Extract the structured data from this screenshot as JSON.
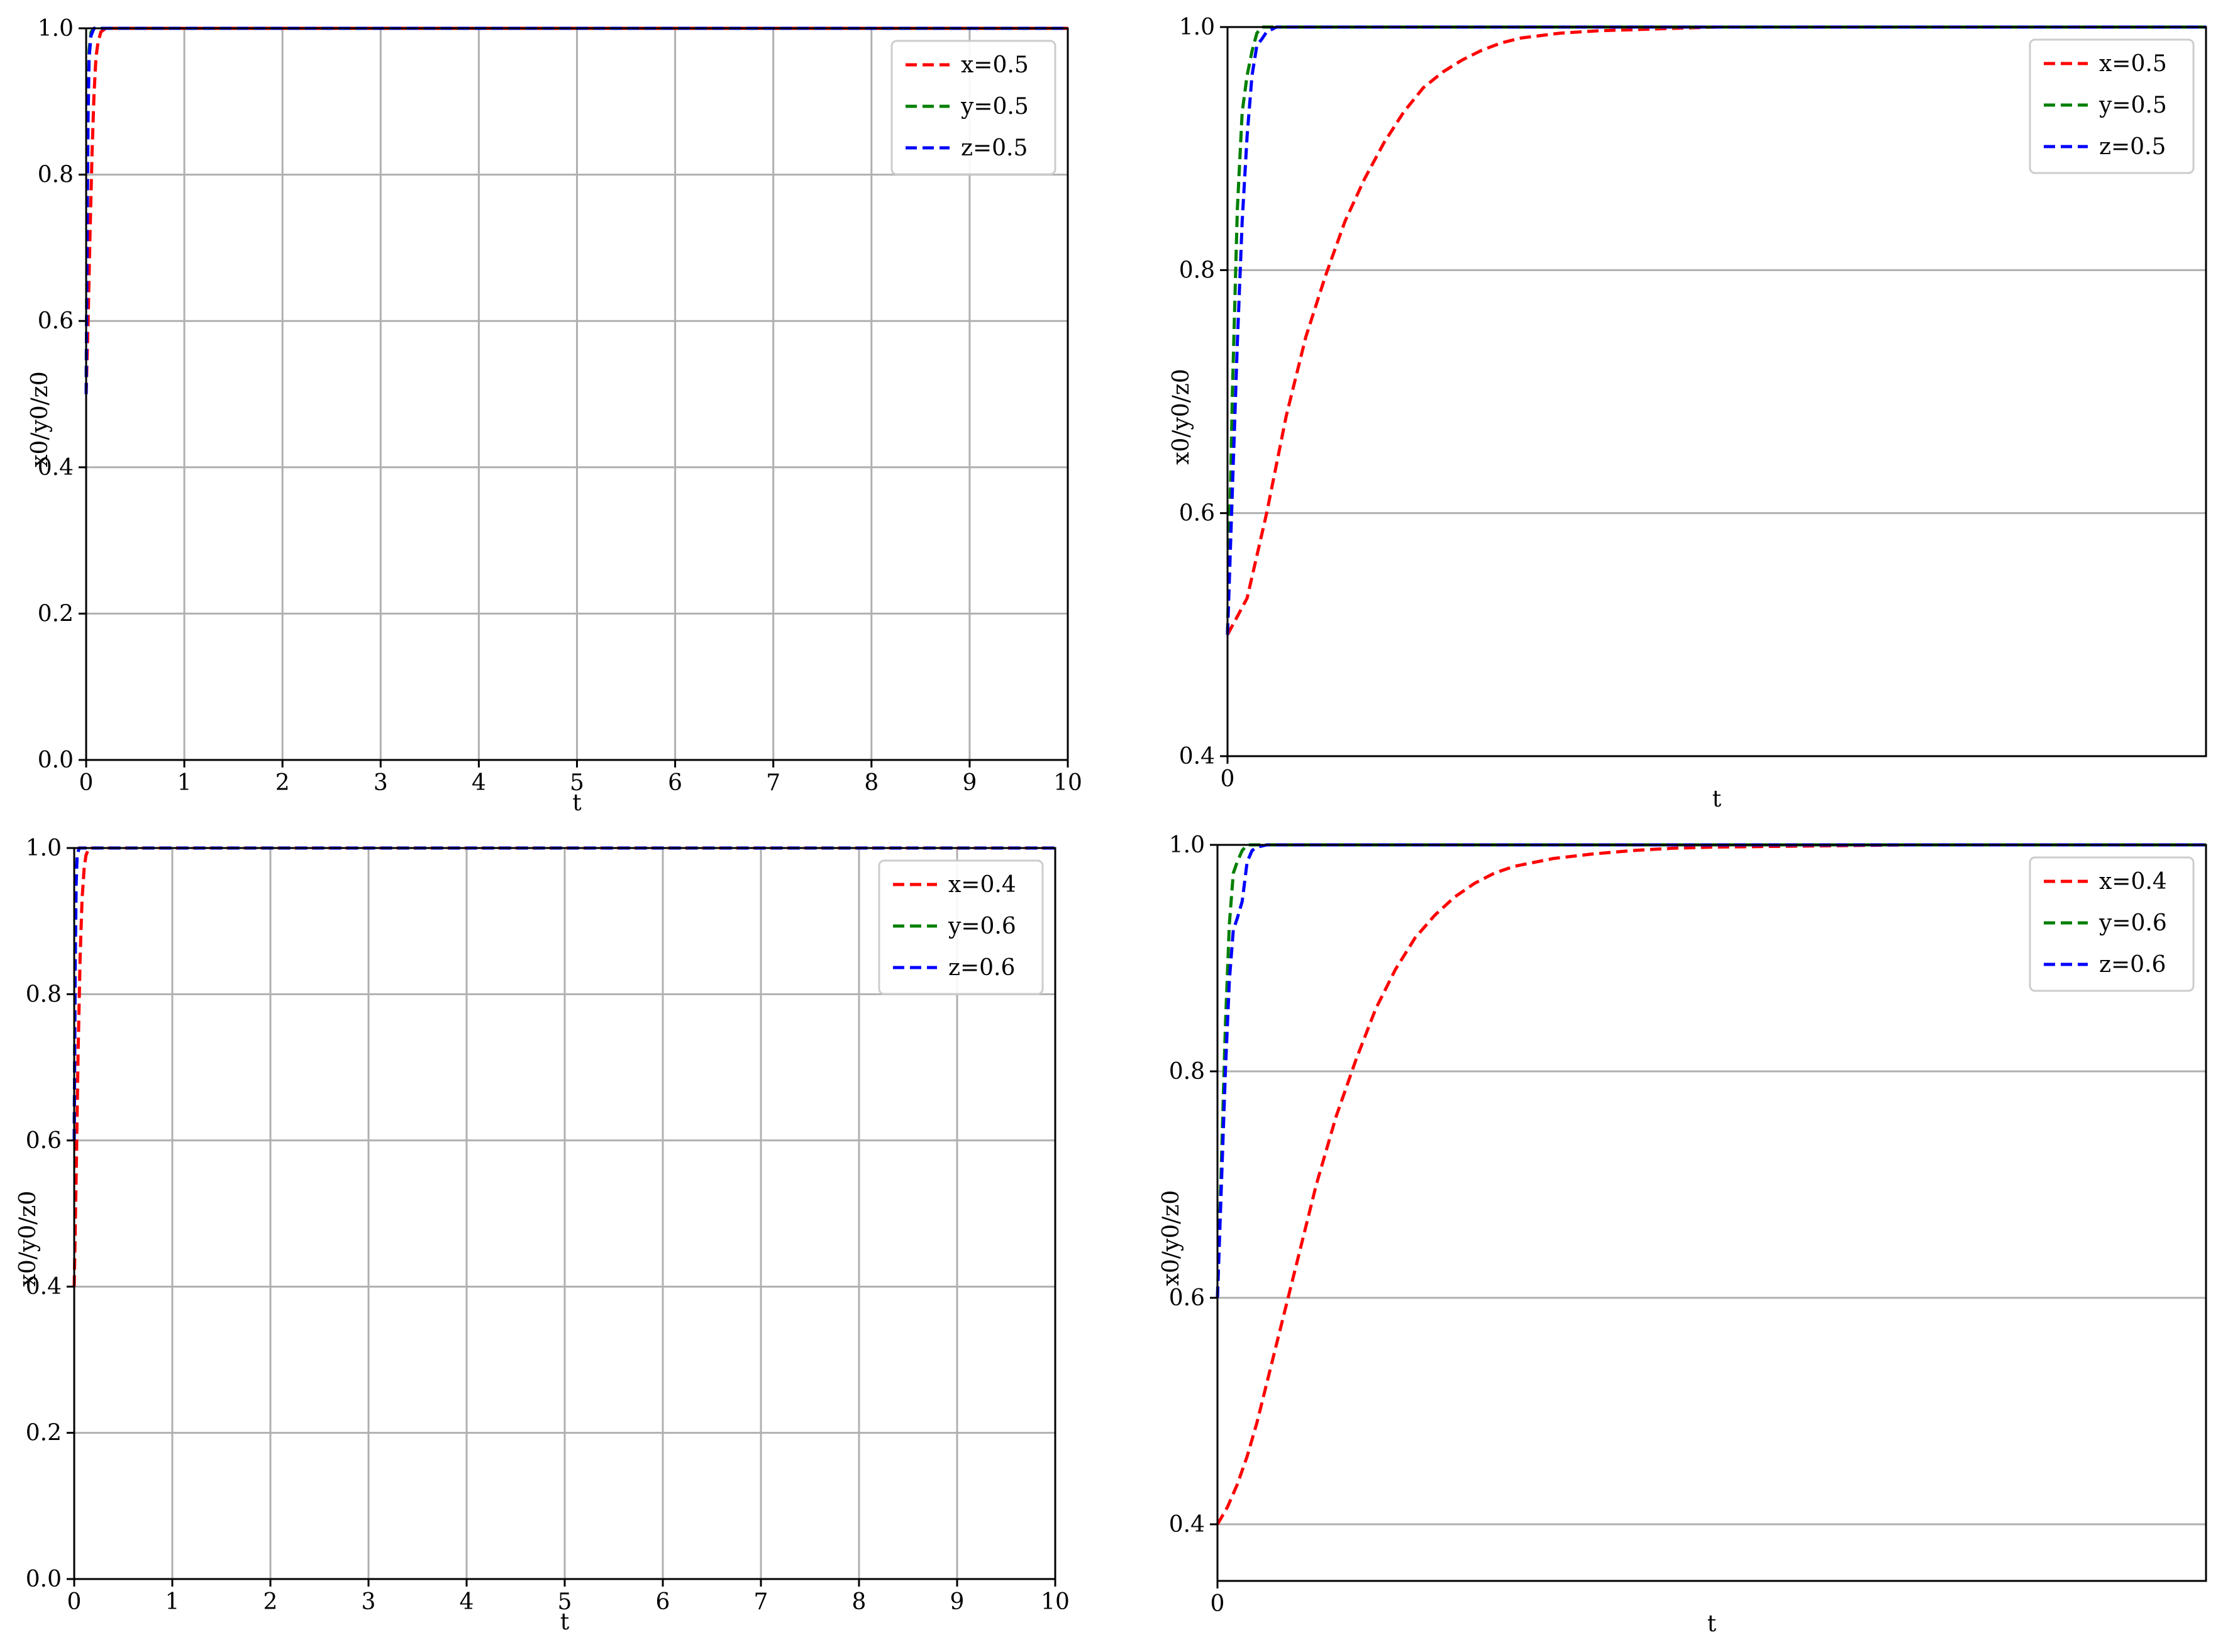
{
  "chart_data": [
    {
      "type": "line",
      "xlabel": "t",
      "ylabel": "x0/y0/z0",
      "xlim": [
        0,
        10
      ],
      "ylim": [
        0,
        1
      ],
      "xticks": [
        "0",
        "1",
        "2",
        "3",
        "4",
        "5",
        "6",
        "7",
        "8",
        "9",
        "10"
      ],
      "yticks": [
        "0.0",
        "0.2",
        "0.4",
        "0.6",
        "0.8",
        "1.0"
      ],
      "grid": "both",
      "legend_position": "top-right",
      "series": [
        {
          "name": "x=0.5",
          "color": "#ff0000",
          "style": "dashed",
          "x": [
            0,
            0.02,
            0.04,
            0.06,
            0.08,
            0.1,
            0.12,
            0.15,
            0.2,
            0.3,
            10
          ],
          "y": [
            0.5,
            0.6,
            0.72,
            0.83,
            0.91,
            0.96,
            0.98,
            0.995,
            1.0,
            1.0,
            1.0
          ]
        },
        {
          "name": "y=0.5",
          "color": "#008000",
          "style": "dashed",
          "x": [
            0,
            0.01,
            0.02,
            0.03,
            0.05,
            0.08,
            10
          ],
          "y": [
            0.5,
            0.75,
            0.9,
            0.97,
            0.995,
            1.0,
            1.0
          ]
        },
        {
          "name": "z=0.5",
          "color": "#0000ff",
          "style": "dashed",
          "x": [
            0,
            0.01,
            0.02,
            0.03,
            0.05,
            0.08,
            10
          ],
          "y": [
            0.5,
            0.72,
            0.88,
            0.96,
            0.99,
            1.0,
            1.0
          ]
        }
      ]
    },
    {
      "type": "line",
      "xlabel": "t",
      "ylabel": "x0/y0/z0",
      "xlim": [
        0,
        1
      ],
      "ylim": [
        0.4,
        1
      ],
      "xticks": [
        "0"
      ],
      "yticks": [
        "0.4",
        "0.6",
        "0.8",
        "1.0"
      ],
      "grid": "y",
      "legend_position": "top-right",
      "series": [
        {
          "name": "x=0.5",
          "color": "#ff0000",
          "style": "dashed",
          "x": [
            0,
            0.01,
            0.02,
            0.03,
            0.04,
            0.05,
            0.06,
            0.08,
            0.1,
            0.12,
            0.14,
            0.16,
            0.18,
            0.2,
            0.22,
            0.24,
            0.26,
            0.28,
            0.3,
            0.34,
            0.38,
            0.42,
            0.46,
            0.5,
            1.0
          ],
          "y": [
            0.5,
            0.515,
            0.53,
            0.565,
            0.6,
            0.64,
            0.68,
            0.745,
            0.795,
            0.84,
            0.875,
            0.905,
            0.93,
            0.95,
            0.963,
            0.973,
            0.981,
            0.987,
            0.991,
            0.995,
            0.997,
            0.998,
            0.999,
            1.0,
            1.0
          ]
        },
        {
          "name": "y=0.5",
          "color": "#008000",
          "style": "dashed",
          "x": [
            0,
            0.005,
            0.01,
            0.015,
            0.02,
            0.025,
            0.03,
            0.035,
            0.04,
            0.05,
            1.0
          ],
          "y": [
            0.5,
            0.7,
            0.85,
            0.93,
            0.96,
            0.98,
            0.995,
            1.0,
            1.0,
            1.0,
            1.0
          ]
        },
        {
          "name": "z=0.5",
          "color": "#0000ff",
          "style": "dashed",
          "x": [
            0,
            0.005,
            0.01,
            0.015,
            0.02,
            0.025,
            0.03,
            0.035,
            0.04,
            0.05,
            0.06,
            1.0
          ],
          "y": [
            0.5,
            0.62,
            0.74,
            0.84,
            0.91,
            0.96,
            0.985,
            0.99,
            0.996,
            1.0,
            1.0,
            1.0
          ]
        }
      ]
    },
    {
      "type": "line",
      "xlabel": "t",
      "ylabel": "x0/y0/z0",
      "xlim": [
        0,
        10
      ],
      "ylim": [
        0,
        1
      ],
      "xticks": [
        "0",
        "1",
        "2",
        "3",
        "4",
        "5",
        "6",
        "7",
        "8",
        "9",
        "10"
      ],
      "yticks": [
        "0.0",
        "0.2",
        "0.4",
        "0.6",
        "0.8",
        "1.0"
      ],
      "grid": "both",
      "legend_position": "top-right",
      "series": [
        {
          "name": "x=0.4",
          "color": "#ff0000",
          "style": "dashed",
          "x": [
            0,
            0.02,
            0.04,
            0.06,
            0.08,
            0.1,
            0.12,
            0.15,
            0.2,
            10
          ],
          "y": [
            0.4,
            0.55,
            0.72,
            0.85,
            0.93,
            0.97,
            0.99,
            1.0,
            1.0,
            1.0
          ]
        },
        {
          "name": "y=0.6",
          "color": "#008000",
          "style": "dashed",
          "x": [
            0,
            0.01,
            0.02,
            0.03,
            0.05,
            10
          ],
          "y": [
            0.6,
            0.85,
            0.96,
            0.99,
            1.0,
            1.0
          ]
        },
        {
          "name": "z=0.6",
          "color": "#0000ff",
          "style": "dashed",
          "x": [
            0,
            0.01,
            0.02,
            0.03,
            0.05,
            10
          ],
          "y": [
            0.6,
            0.84,
            0.95,
            0.99,
            1.0,
            1.0
          ]
        }
      ]
    },
    {
      "type": "line",
      "xlabel": "t",
      "ylabel": "x0/y0/z0",
      "xlim": [
        0,
        1
      ],
      "ylim": [
        0.35,
        1
      ],
      "xticks": [
        "0"
      ],
      "yticks": [
        "0.4",
        "0.6",
        "0.8",
        "1.0"
      ],
      "grid": "y",
      "legend_position": "top-right",
      "series": [
        {
          "name": "x=0.4",
          "color": "#ff0000",
          "style": "dashed",
          "x": [
            0,
            0.01,
            0.02,
            0.03,
            0.04,
            0.05,
            0.06,
            0.08,
            0.1,
            0.12,
            0.14,
            0.16,
            0.18,
            0.2,
            0.22,
            0.24,
            0.26,
            0.28,
            0.3,
            0.34,
            0.38,
            0.42,
            0.46,
            0.5,
            0.6,
            0.7,
            1.0
          ],
          "y": [
            0.4,
            0.415,
            0.435,
            0.46,
            0.49,
            0.525,
            0.56,
            0.63,
            0.7,
            0.76,
            0.81,
            0.855,
            0.89,
            0.918,
            0.938,
            0.954,
            0.966,
            0.975,
            0.981,
            0.988,
            0.992,
            0.995,
            0.997,
            0.998,
            0.999,
            1.0,
            1.0
          ]
        },
        {
          "name": "y=0.6",
          "color": "#008000",
          "style": "dashed",
          "x": [
            0,
            0.004,
            0.008,
            0.012,
            0.016,
            0.02,
            0.025,
            0.03,
            0.04,
            1.0
          ],
          "y": [
            0.6,
            0.72,
            0.84,
            0.93,
            0.975,
            0.985,
            0.995,
            1.0,
            1.0,
            1.0
          ]
        },
        {
          "name": "z=0.6",
          "color": "#0000ff",
          "style": "dashed",
          "x": [
            0,
            0.004,
            0.008,
            0.012,
            0.016,
            0.02,
            0.025,
            0.03,
            0.035,
            0.04,
            0.05,
            1.0
          ],
          "y": [
            0.6,
            0.7,
            0.8,
            0.88,
            0.925,
            0.935,
            0.95,
            0.985,
            0.995,
            0.998,
            1.0,
            1.0
          ]
        }
      ]
    }
  ]
}
